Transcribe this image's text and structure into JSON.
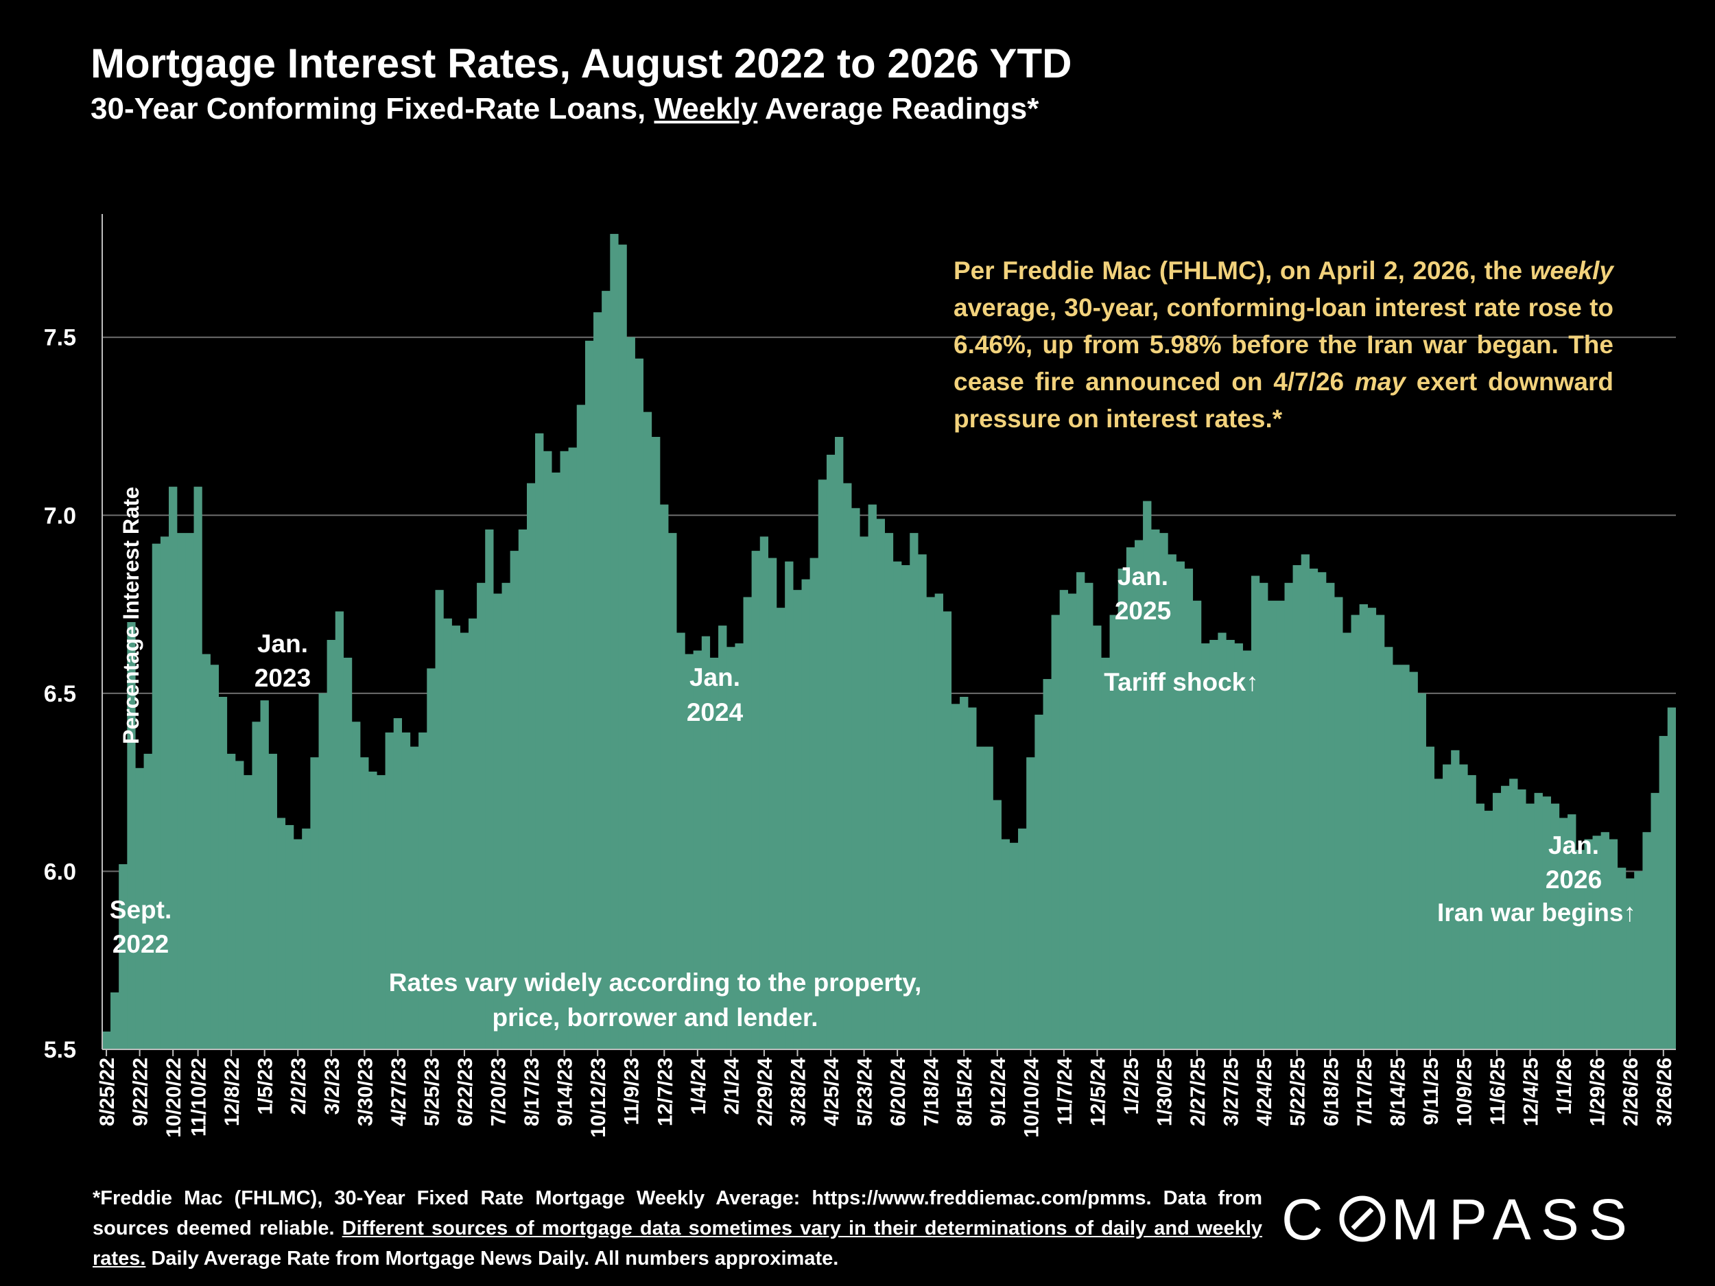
{
  "title": "Mortgage Interest Rates, August 2022 to 2026 YTD",
  "subtitle": {
    "pre": "30-Year Conforming Fixed-Rate Loans, ",
    "underlined": "Weekly",
    "post": " Average Readings*"
  },
  "note": {
    "p1": "Per Freddie Mac (FHLMC), on April 2, 2026, the ",
    "p2_italic": "weekly",
    "p3": " average, 30-year, conforming-loan interest rate rose to 6.46%, up from 5.98% before the Iran war began. The cease fire announced on 4/7/26 ",
    "p4_italic": "may",
    "p5": " exert downward pressure on interest rates.*"
  },
  "footer": {
    "line1": "*Freddie Mac (FHLMC), 30-Year Fixed Rate Mortgage Weekly Average:  https://www.freddiemac.com/pmms. Data from sources deemed reliable. ",
    "underlined": "Different sources of mortgage data sometimes vary in their determinations of daily and weekly rates.",
    "line2": " Daily Average Rate from Mortgage News Daily. All numbers approximate."
  },
  "logo_text": "COMPASS",
  "colors": {
    "background": "#000000",
    "bars": "#4f9a82",
    "note_text": "#f2d27c",
    "text": "#ffffff",
    "grid": "#6e6e6e"
  },
  "chart_data": {
    "type": "bar",
    "ylabel": "Percentage Interest  Rate",
    "ylim": [
      5.5,
      7.85
    ],
    "yticks": [
      "5.5",
      "6.0",
      "6.5",
      "7.0",
      "7.5"
    ],
    "ytick_values": [
      5.5,
      6.0,
      6.5,
      7.0,
      7.5
    ],
    "xtick_labels": [
      "8/25/22",
      "9/22/22",
      "10/20/22",
      "11/10/22",
      "12/8/22",
      "1/5/23",
      "2/2/23",
      "3/2/23",
      "3/30/23",
      "4/27/23",
      "5/25/23",
      "6/22/23",
      "7/20/23",
      "8/17/23",
      "9/14/23",
      "10/12/23",
      "11/9/23",
      "12/7/23",
      "1/4/24",
      "2/1/24",
      "2/29/24",
      "3/28/24",
      "4/25/24",
      "5/23/24",
      "6/20/24",
      "7/18/24",
      "8/15/24",
      "9/12/24",
      "10/10/24",
      "11/7/24",
      "12/5/24",
      "1/2/25",
      "1/30/25",
      "2/27/25",
      "3/27/25",
      "4/24/25",
      "5/22/25",
      "6/18/25",
      "7/17/25",
      "8/14/25",
      "9/11/25",
      "10/9/25",
      "11/6/25",
      "12/4/25",
      "1/1/26",
      "1/29/26",
      "2/26/26",
      "3/26/26"
    ],
    "xtick_positions": [
      0,
      4,
      8,
      11,
      15,
      19,
      23,
      27,
      31,
      35,
      39,
      43,
      47,
      51,
      55,
      59,
      63,
      67,
      71,
      75,
      79,
      83,
      87,
      91,
      95,
      99,
      103,
      107,
      111,
      115,
      119,
      123,
      127,
      131,
      135,
      139,
      143,
      147,
      151,
      155,
      159,
      163,
      167,
      171,
      175,
      179,
      183,
      187
    ],
    "values": [
      5.55,
      5.66,
      6.02,
      6.7,
      6.29,
      6.33,
      6.92,
      6.94,
      7.08,
      6.95,
      6.95,
      7.08,
      6.61,
      6.58,
      6.49,
      6.33,
      6.31,
      6.27,
      6.42,
      6.48,
      6.33,
      6.15,
      6.13,
      6.09,
      6.12,
      6.32,
      6.5,
      6.65,
      6.73,
      6.6,
      6.42,
      6.32,
      6.28,
      6.27,
      6.39,
      6.43,
      6.39,
      6.35,
      6.39,
      6.57,
      6.79,
      6.71,
      6.69,
      6.67,
      6.71,
      6.81,
      6.96,
      6.78,
      6.81,
      6.9,
      6.96,
      7.09,
      7.23,
      7.18,
      7.12,
      7.18,
      7.19,
      7.31,
      7.49,
      7.57,
      7.63,
      7.79,
      7.76,
      7.5,
      7.44,
      7.29,
      7.22,
      7.03,
      6.95,
      6.67,
      6.61,
      6.62,
      6.66,
      6.6,
      6.69,
      6.63,
      6.64,
      6.77,
      6.9,
      6.94,
      6.88,
      6.74,
      6.87,
      6.79,
      6.82,
      6.88,
      7.1,
      7.17,
      7.22,
      7.09,
      7.02,
      6.94,
      7.03,
      6.99,
      6.95,
      6.87,
      6.86,
      6.95,
      6.89,
      6.77,
      6.78,
      6.73,
      6.47,
      6.49,
      6.46,
      6.35,
      6.35,
      6.2,
      6.09,
      6.08,
      6.12,
      6.32,
      6.44,
      6.54,
      6.72,
      6.79,
      6.78,
      6.84,
      6.81,
      6.69,
      6.6,
      6.72,
      6.85,
      6.91,
      6.93,
      7.04,
      6.96,
      6.95,
      6.89,
      6.87,
      6.85,
      6.76,
      6.64,
      6.65,
      6.67,
      6.65,
      6.64,
      6.62,
      6.83,
      6.81,
      6.76,
      6.76,
      6.81,
      6.86,
      6.89,
      6.85,
      6.84,
      6.81,
      6.77,
      6.67,
      6.72,
      6.75,
      6.74,
      6.72,
      6.63,
      6.58,
      6.58,
      6.56,
      6.5,
      6.35,
      6.26,
      6.3,
      6.34,
      6.3,
      6.27,
      6.19,
      6.17,
      6.22,
      6.24,
      6.26,
      6.23,
      6.19,
      6.22,
      6.21,
      6.19,
      6.15,
      6.16,
      6.06,
      6.09,
      6.1,
      6.11,
      6.09,
      6.01,
      5.98,
      6.0,
      6.11,
      6.22,
      6.38,
      6.46
    ],
    "annotations": {
      "sept2022": [
        "Sept.",
        "2022"
      ],
      "jan2023": [
        "Jan.",
        "2023"
      ],
      "jan2024": [
        "Jan.",
        "2024"
      ],
      "jan2025": [
        "Jan.",
        "2025"
      ],
      "tariff": "Tariff shock↑",
      "jan2026": [
        "Jan.",
        "2026"
      ],
      "iran": "Iran war begins↑",
      "rates_note": [
        "Rates vary widely according to the property,",
        "price, borrower and lender."
      ]
    }
  }
}
